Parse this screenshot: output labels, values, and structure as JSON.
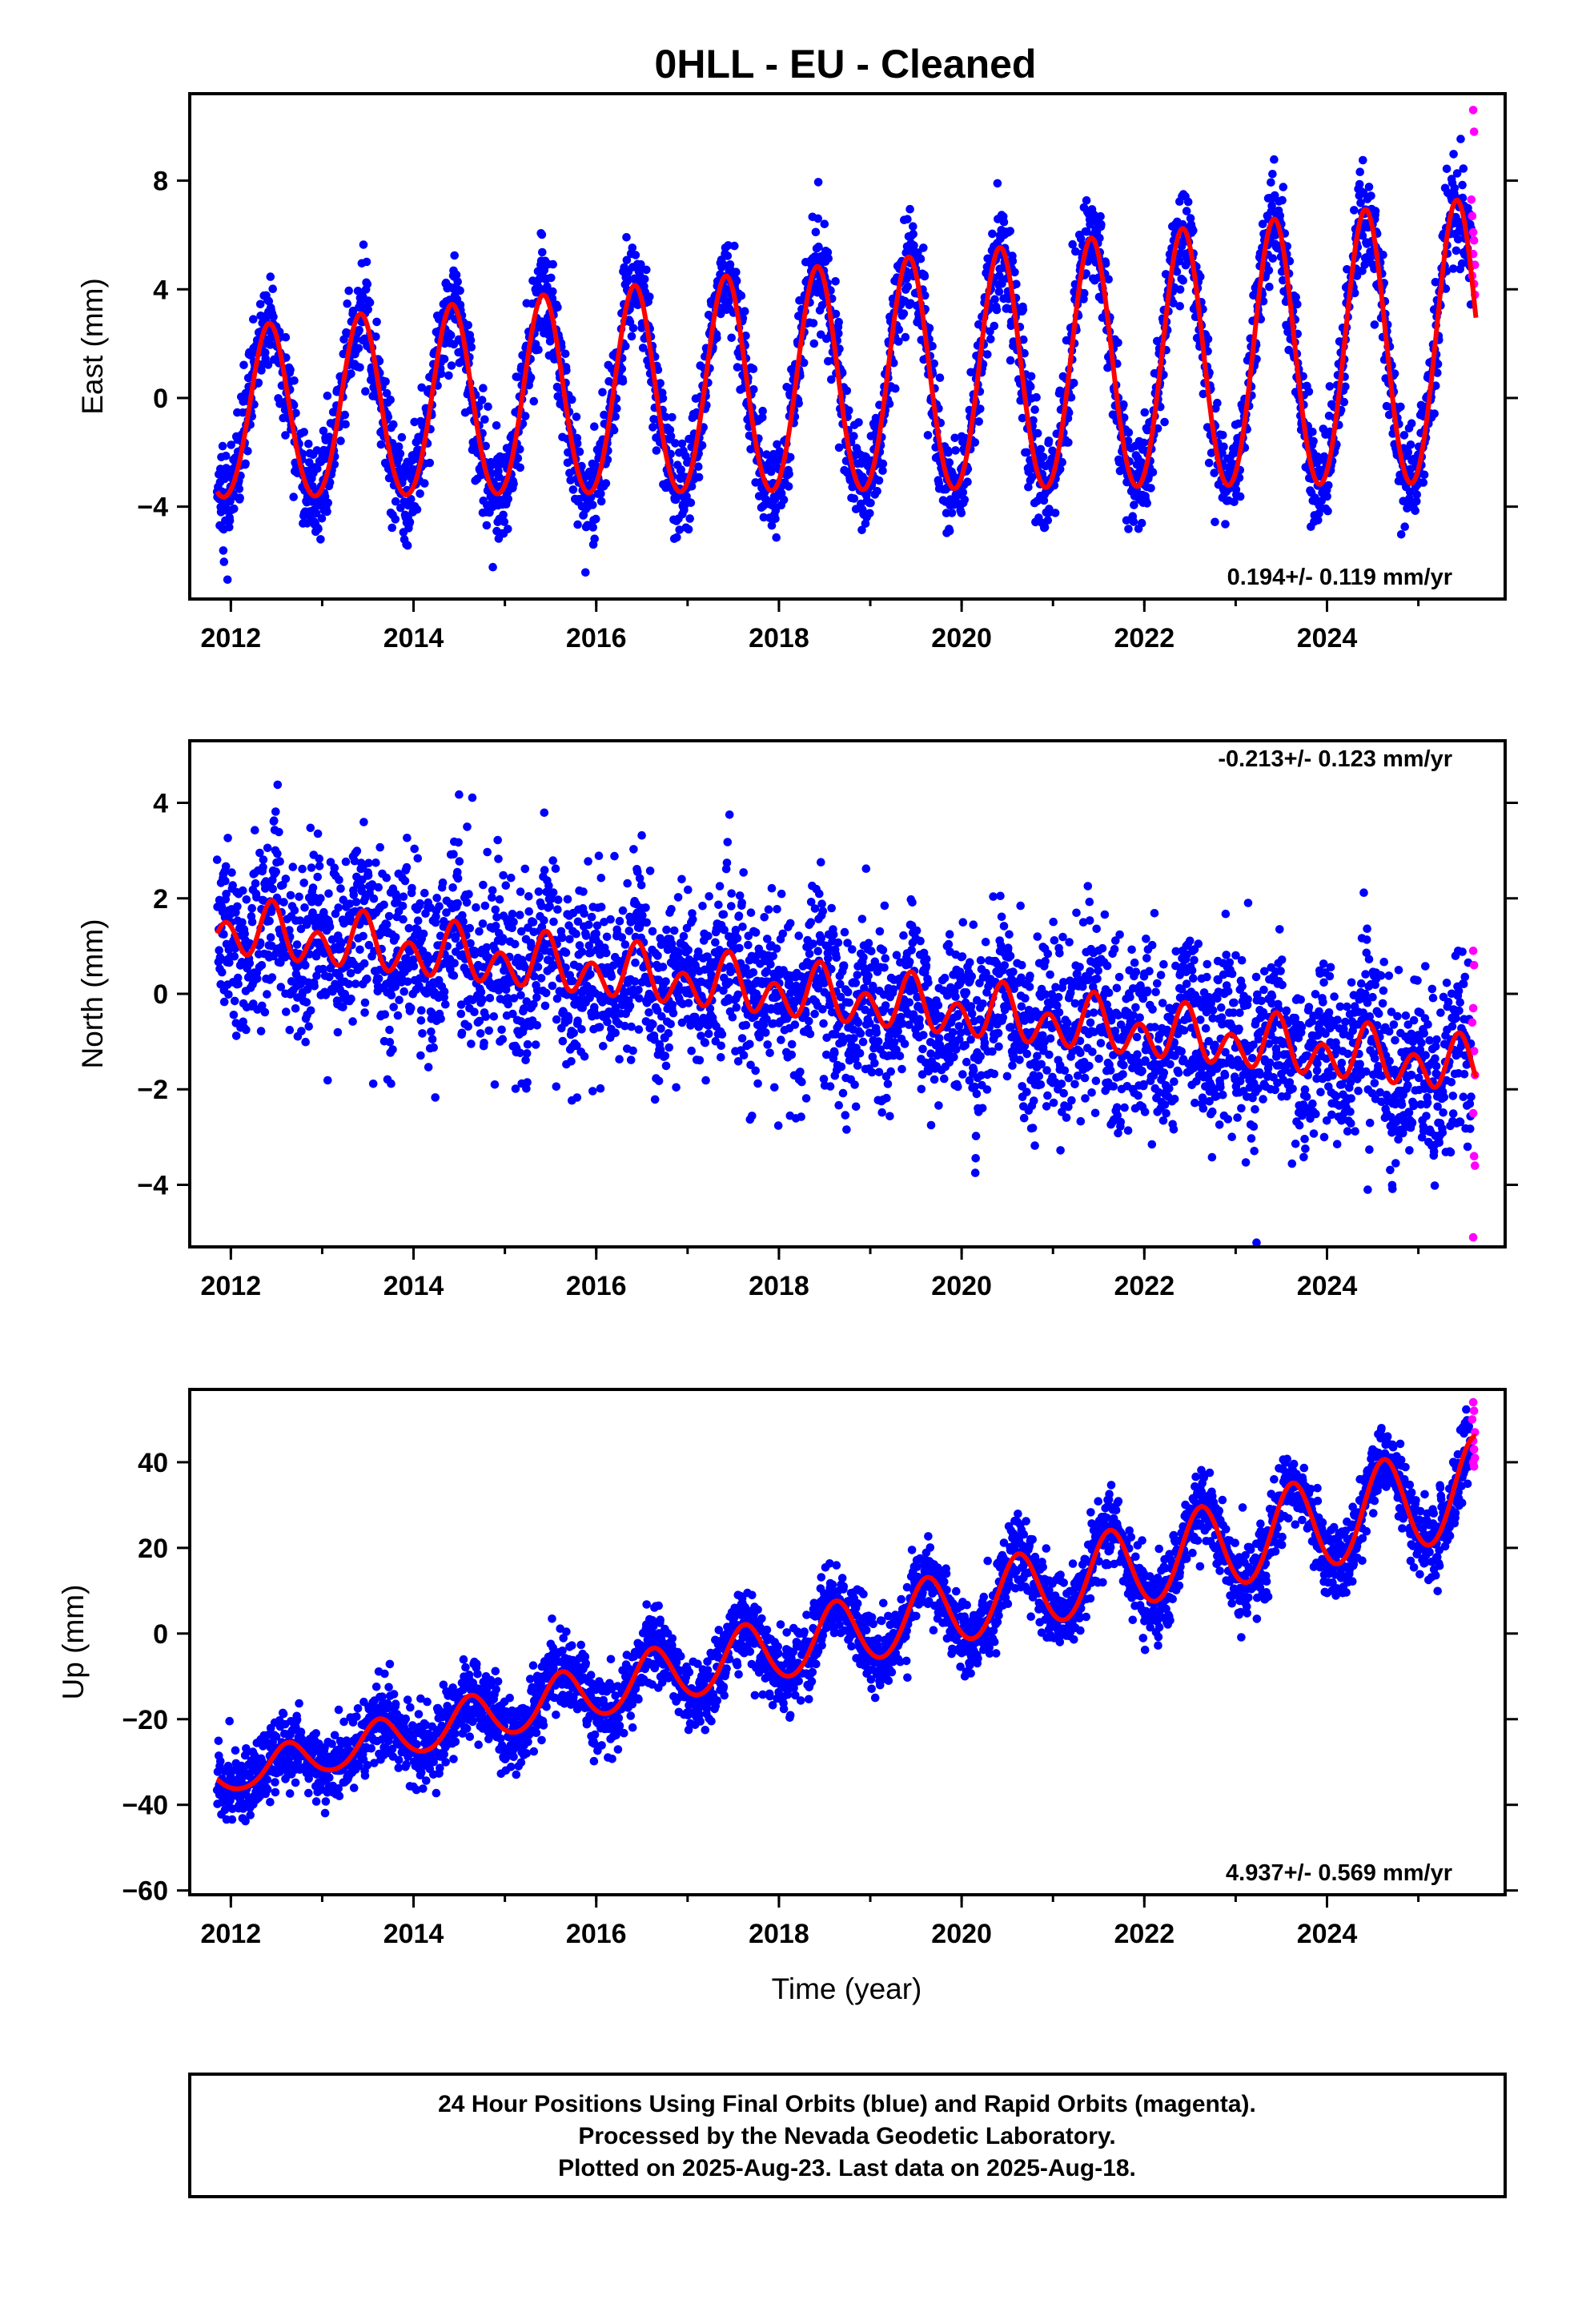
{
  "title": "0HLL  - EU - Cleaned",
  "colors": {
    "final_orbits": "#0000ff",
    "rapid_orbits": "#ff00ff",
    "model_fit": "#ff0000"
  },
  "footer": {
    "line1": "24 Hour Positions Using Final Orbits (blue) and Rapid Orbits (magenta).",
    "line2": "Processed by the Nevada Geodetic Laboratory.",
    "line3": "Plotted on 2025-Aug-23. Last data on 2025-Aug-18."
  },
  "chart_data": [
    {
      "type": "scatter",
      "ylabel": "East (mm)",
      "xlabel": "",
      "xlim": [
        2011.55,
        2025.95
      ],
      "ylim": [
        -7.4,
        11.2
      ],
      "xticks": [
        2012,
        2014,
        2016,
        2018,
        2020,
        2022,
        2024
      ],
      "yticks": [
        -4,
        0,
        4,
        8
      ],
      "yticklabels": [
        "−4",
        "0",
        "4",
        "8"
      ],
      "rate_label": "0.194+/- 0.119 mm/yr",
      "rate_position": "bottom-right",
      "x_range": [
        2011.85,
        2025.63
      ],
      "model": {
        "offset": -0.8,
        "rate": 0.194,
        "annual_amp": 3.1,
        "annual_peak": 2012.42,
        "annual_amp_growth": 0.01,
        "semi_amp": 0.25
      },
      "scatter_std": 0.95,
      "rapid_points": [
        {
          "x": 2025.6,
          "y": 10.6
        },
        {
          "x": 2025.61,
          "y": 9.8
        },
        {
          "x": 2025.58,
          "y": 7.3
        },
        {
          "x": 2025.59,
          "y": 6.7
        },
        {
          "x": 2025.6,
          "y": 6.1
        },
        {
          "x": 2025.61,
          "y": 5.8
        },
        {
          "x": 2025.6,
          "y": 5.3
        },
        {
          "x": 2025.62,
          "y": 4.9
        },
        {
          "x": 2025.59,
          "y": 4.5
        },
        {
          "x": 2025.61,
          "y": 4.2
        },
        {
          "x": 2025.62,
          "y": 3.8
        }
      ]
    },
    {
      "type": "scatter",
      "ylabel": "North (mm)",
      "xlabel": "",
      "xlim": [
        2011.55,
        2025.95
      ],
      "ylim": [
        -5.3,
        5.3
      ],
      "xticks": [
        2012,
        2014,
        2016,
        2018,
        2020,
        2022,
        2024
      ],
      "yticks": [
        -4,
        -2,
        0,
        2,
        4
      ],
      "yticklabels": [
        "−4",
        "−2",
        "0",
        "2",
        "4"
      ],
      "rate_label": "-0.213+/- 0.123 mm/yr",
      "rate_position": "top-right",
      "x_range": [
        2011.85,
        2025.63
      ],
      "model": {
        "offset": 1.35,
        "rate": -0.213,
        "annual_amp": 0.28,
        "annual_peak": 2012.45,
        "annual_amp_growth": 0.0,
        "semi_amp": 0.45
      },
      "scatter_std": 0.95,
      "rapid_points": [
        {
          "x": 2025.6,
          "y": 0.9
        },
        {
          "x": 2025.61,
          "y": 0.6
        },
        {
          "x": 2025.6,
          "y": -0.3
        },
        {
          "x": 2025.59,
          "y": -0.6
        },
        {
          "x": 2025.61,
          "y": -1.2
        },
        {
          "x": 2025.62,
          "y": -1.7
        },
        {
          "x": 2025.6,
          "y": -2.5
        },
        {
          "x": 2025.61,
          "y": -3.4
        },
        {
          "x": 2025.62,
          "y": -3.6
        },
        {
          "x": 2025.6,
          "y": -5.1
        }
      ]
    },
    {
      "type": "scatter",
      "ylabel": "Up (mm)",
      "xlabel": "Time (year)",
      "xlim": [
        2011.55,
        2025.95
      ],
      "ylim": [
        -61,
        57
      ],
      "xticks": [
        2012,
        2014,
        2016,
        2018,
        2020,
        2022,
        2024
      ],
      "yticks": [
        -60,
        -40,
        -20,
        0,
        20,
        40
      ],
      "yticklabels": [
        "−60",
        "−40",
        "−20",
        "0",
        "20",
        "40"
      ],
      "rate_label": "4.937+/- 0.569 mm/yr",
      "rate_position": "bottom-right",
      "x_range": [
        2011.85,
        2025.63
      ],
      "model": {
        "offset": -34.0,
        "rate": 4.937,
        "annual_amp": 3.8,
        "annual_peak": 2012.62,
        "annual_amp_growth": 0.03,
        "semi_amp": 0.5
      },
      "scatter_std": 4.4,
      "rapid_points": [
        {
          "x": 2025.6,
          "y": 54
        },
        {
          "x": 2025.61,
          "y": 52
        },
        {
          "x": 2025.59,
          "y": 50
        },
        {
          "x": 2025.62,
          "y": 47
        },
        {
          "x": 2025.6,
          "y": 45
        },
        {
          "x": 2025.61,
          "y": 43
        },
        {
          "x": 2025.62,
          "y": 41
        },
        {
          "x": 2025.6,
          "y": 40
        },
        {
          "x": 2025.61,
          "y": 39
        }
      ]
    }
  ]
}
